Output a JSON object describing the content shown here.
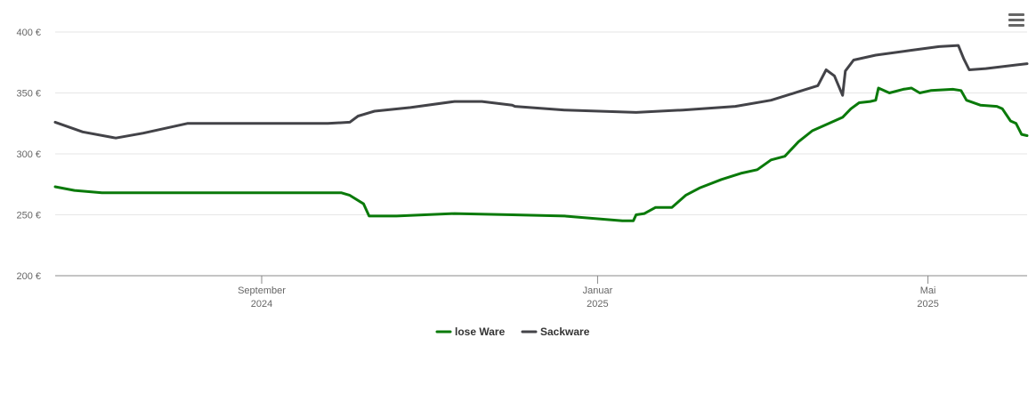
{
  "menu": {
    "icon": "hamburger-menu-icon"
  },
  "chart_data": {
    "type": "line",
    "title": "",
    "xlabel": "",
    "ylabel": "",
    "ylim": [
      200,
      400
    ],
    "yticks": [
      200,
      250,
      300,
      350,
      400
    ],
    "ytick_labels": [
      "200 €",
      "250 €",
      "300 €",
      "350 €",
      "400 €"
    ],
    "xlim": [
      "2024-06-18",
      "2025-06-06"
    ],
    "xticks": [
      {
        "date": "2024-09-01",
        "line1": "September",
        "line2": "2024"
      },
      {
        "date": "2025-01-01",
        "line1": "Januar",
        "line2": "2025"
      },
      {
        "date": "2025-05-01",
        "line1": "Mai",
        "line2": "2025"
      }
    ],
    "grid": true,
    "legend": "bottom-center",
    "series": [
      {
        "name": "lose Ware",
        "color": "#0a7a0a",
        "points": [
          [
            "2024-06-18",
            273
          ],
          [
            "2024-06-25",
            270
          ],
          [
            "2024-07-05",
            268
          ],
          [
            "2024-07-20",
            268
          ],
          [
            "2024-08-10",
            268
          ],
          [
            "2024-08-31",
            268
          ],
          [
            "2024-09-25",
            268
          ],
          [
            "2024-09-30",
            268
          ],
          [
            "2024-10-03",
            266
          ],
          [
            "2024-10-08",
            259
          ],
          [
            "2024-10-10",
            249
          ],
          [
            "2024-10-20",
            249
          ],
          [
            "2024-11-10",
            251
          ],
          [
            "2024-12-01",
            250
          ],
          [
            "2024-12-20",
            249
          ],
          [
            "2025-01-10",
            245
          ],
          [
            "2025-01-14",
            245
          ],
          [
            "2025-01-15",
            250
          ],
          [
            "2025-01-18",
            251
          ],
          [
            "2025-01-22",
            256
          ],
          [
            "2025-01-28",
            256
          ],
          [
            "2025-02-02",
            266
          ],
          [
            "2025-02-07",
            272
          ],
          [
            "2025-02-15",
            279
          ],
          [
            "2025-02-22",
            284
          ],
          [
            "2025-02-28",
            287
          ],
          [
            "2025-03-05",
            295
          ],
          [
            "2025-03-10",
            298
          ],
          [
            "2025-03-15",
            310
          ],
          [
            "2025-03-20",
            319
          ],
          [
            "2025-03-26",
            325
          ],
          [
            "2025-03-31",
            330
          ],
          [
            "2025-04-03",
            337
          ],
          [
            "2025-04-06",
            342
          ],
          [
            "2025-04-10",
            343
          ],
          [
            "2025-04-12",
            344
          ],
          [
            "2025-04-13",
            354
          ],
          [
            "2025-04-17",
            350
          ],
          [
            "2025-04-22",
            353
          ],
          [
            "2025-04-25",
            354
          ],
          [
            "2025-04-28",
            350
          ],
          [
            "2025-05-02",
            352
          ],
          [
            "2025-05-10",
            353
          ],
          [
            "2025-05-13",
            352
          ],
          [
            "2025-05-15",
            344
          ],
          [
            "2025-05-20",
            340
          ],
          [
            "2025-05-26",
            339
          ],
          [
            "2025-05-28",
            337
          ],
          [
            "2025-05-31",
            327
          ],
          [
            "2025-06-02",
            325
          ],
          [
            "2025-06-04",
            316
          ],
          [
            "2025-06-06",
            315
          ]
        ]
      },
      {
        "name": "Sackware",
        "color": "#434348",
        "points": [
          [
            "2024-06-18",
            326
          ],
          [
            "2024-06-28",
            318
          ],
          [
            "2024-07-10",
            313
          ],
          [
            "2024-07-20",
            317
          ],
          [
            "2024-08-05",
            325
          ],
          [
            "2024-08-31",
            325
          ],
          [
            "2024-09-25",
            325
          ],
          [
            "2024-10-03",
            326
          ],
          [
            "2024-10-06",
            331
          ],
          [
            "2024-10-12",
            335
          ],
          [
            "2024-10-25",
            338
          ],
          [
            "2024-11-10",
            343
          ],
          [
            "2024-11-20",
            343
          ],
          [
            "2024-12-01",
            340
          ],
          [
            "2024-12-02",
            339
          ],
          [
            "2024-12-20",
            336
          ],
          [
            "2025-01-15",
            334
          ],
          [
            "2025-02-01",
            336
          ],
          [
            "2025-02-20",
            339
          ],
          [
            "2025-03-05",
            344
          ],
          [
            "2025-03-15",
            351
          ],
          [
            "2025-03-22",
            356
          ],
          [
            "2025-03-25",
            369
          ],
          [
            "2025-03-28",
            364
          ],
          [
            "2025-03-31",
            348
          ],
          [
            "2025-04-01",
            368
          ],
          [
            "2025-04-04",
            377
          ],
          [
            "2025-04-12",
            381
          ],
          [
            "2025-04-25",
            385
          ],
          [
            "2025-05-05",
            388
          ],
          [
            "2025-05-12",
            389
          ],
          [
            "2025-05-14",
            378
          ],
          [
            "2025-05-16",
            369
          ],
          [
            "2025-05-22",
            370
          ],
          [
            "2025-06-06",
            374
          ]
        ]
      }
    ]
  }
}
